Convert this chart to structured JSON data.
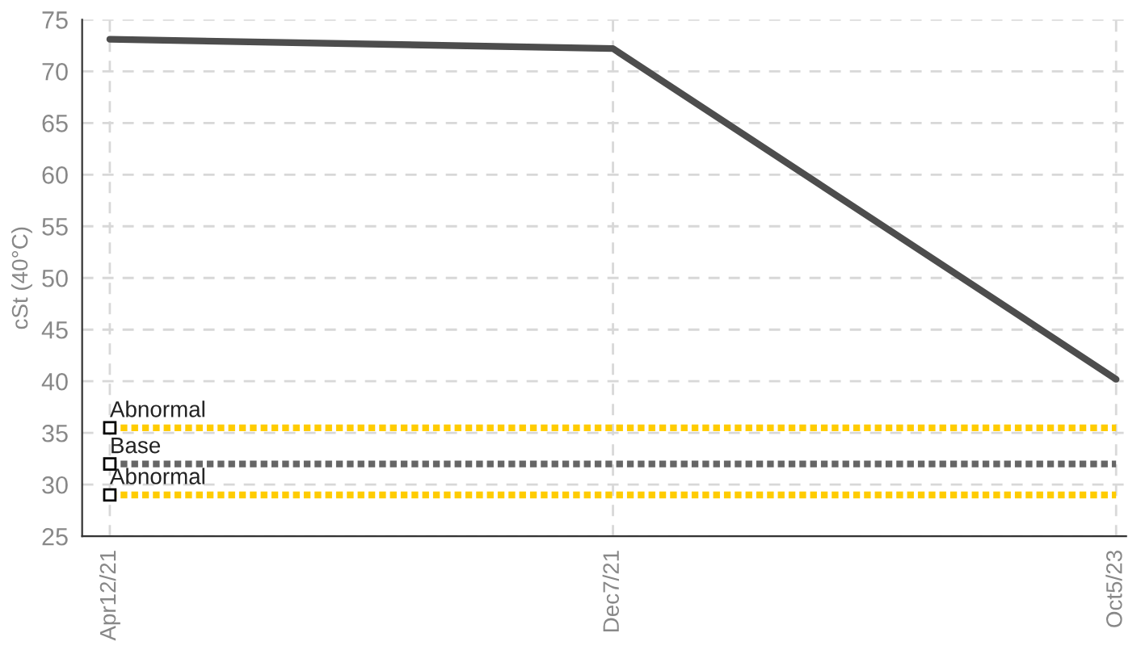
{
  "chart_data": {
    "type": "line",
    "ylabel": "cSt (40°C)",
    "categories": [
      "Apr12/21",
      "Dec7/21",
      "Oct5/23"
    ],
    "series": [
      {
        "color": "#4d4d4d",
        "values": [
          73.1,
          72.2,
          40.2
        ]
      }
    ],
    "ylim": [
      25,
      75
    ],
    "yticks": [
      25,
      30,
      35,
      40,
      45,
      50,
      55,
      60,
      65,
      70,
      75
    ],
    "grid": true,
    "marker": "none",
    "line_style": "solid",
    "ref_lines": [
      {
        "axis": "y",
        "value": 35.5,
        "label": "Abnormal",
        "color": "#ffcc00",
        "line_style": "dotted"
      },
      {
        "axis": "y",
        "value": 32,
        "label": "Base",
        "color": "#666666",
        "line_style": "dotted"
      },
      {
        "axis": "y",
        "value": 29,
        "label": "Abnormal",
        "color": "#ffcc00",
        "line_style": "dotted"
      }
    ]
  }
}
